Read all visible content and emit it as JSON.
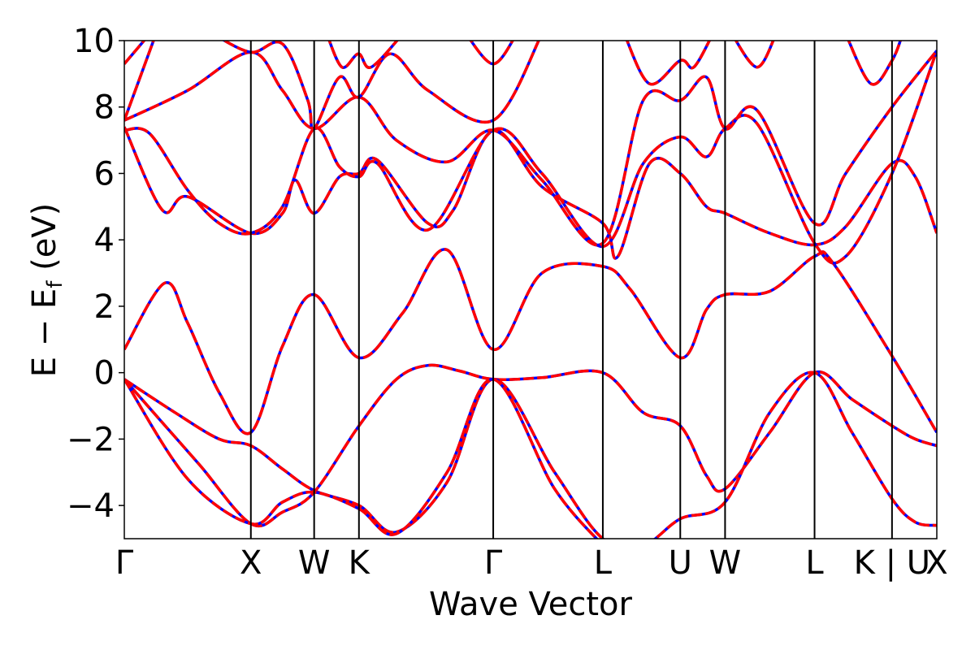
{
  "chart_data": {
    "type": "line",
    "xlabel": "Wave Vector",
    "ylabel_main": "E − E",
    "ylabel_sub": "f",
    "ylabel_unit": " (eV)",
    "ylim": [
      -5,
      10
    ],
    "yticks": [
      -4,
      -2,
      0,
      2,
      4,
      6,
      8,
      10
    ],
    "ytick_labels": [
      "−4",
      "−2",
      "0",
      "2",
      "4",
      "6",
      "8",
      "10"
    ],
    "xlim": [
      0,
      6.5
    ],
    "kpoints": [
      {
        "label": "Γ",
        "x": 0.0
      },
      {
        "label": "X",
        "x": 1.0
      },
      {
        "label": "W",
        "x": 1.5
      },
      {
        "label": "K",
        "x": 1.854
      },
      {
        "label": "Γ",
        "x": 2.915
      },
      {
        "label": "L",
        "x": 3.781
      },
      {
        "label": "U",
        "x": 4.393
      },
      {
        "label": "W",
        "x": 4.747
      },
      {
        "label": "L",
        "x": 5.454
      },
      {
        "label": "K | U",
        "x": 6.066
      },
      {
        "label": "X",
        "x": 6.42
      }
    ],
    "x_range_end": 6.42,
    "grid": false,
    "series_style": [
      {
        "color": "#0000ff",
        "dash": "solid",
        "width": 3.5
      },
      {
        "color": "#ff0000",
        "dash": "dashed",
        "width": 3.5
      }
    ],
    "bands": [
      [
        [
          0,
          -0.2
        ],
        [
          0.3,
          -1.5
        ],
        [
          0.6,
          -2.8
        ],
        [
          1.0,
          -4.55
        ],
        [
          1.25,
          -4.2
        ],
        [
          1.5,
          -3.6
        ],
        [
          1.854,
          -1.6
        ],
        [
          2.15,
          -0.2
        ],
        [
          2.4,
          0.22
        ],
        [
          2.65,
          0.05
        ],
        [
          2.915,
          -0.2
        ],
        [
          3.3,
          -0.15
        ],
        [
          3.781,
          0.0
        ],
        [
          4.1,
          -1.2
        ],
        [
          4.393,
          -1.6
        ],
        [
          4.6,
          -3.1
        ],
        [
          4.747,
          -3.5
        ],
        [
          5.1,
          -1.8
        ],
        [
          5.454,
          0.0
        ],
        [
          5.75,
          -0.8
        ],
        [
          6.066,
          -1.6
        ],
        [
          6.25,
          -2.0
        ],
        [
          6.42,
          -2.2
        ]
      ],
      [
        [
          0,
          -0.2
        ],
        [
          0.4,
          -1.2
        ],
        [
          0.75,
          -2.0
        ],
        [
          1.0,
          -2.2
        ],
        [
          1.25,
          -2.9
        ],
        [
          1.5,
          -3.55
        ],
        [
          1.854,
          -4.0
        ],
        [
          2.15,
          -4.8
        ],
        [
          2.55,
          -3.3
        ],
        [
          2.915,
          -0.2
        ],
        [
          3.4,
          -3.0
        ],
        [
          3.781,
          -5.0
        ],
        [
          4.1,
          -5.2
        ],
        [
          4.393,
          -4.4
        ],
        [
          4.747,
          -3.9
        ],
        [
          5.1,
          -1.2
        ],
        [
          5.454,
          0.0
        ],
        [
          5.75,
          -1.8
        ],
        [
          6.066,
          -3.8
        ],
        [
          6.25,
          -4.5
        ],
        [
          6.42,
          -4.6
        ]
      ],
      [
        [
          0,
          -0.2
        ],
        [
          0.5,
          -3.2
        ],
        [
          1.0,
          -4.55
        ],
        [
          1.25,
          -3.9
        ],
        [
          1.5,
          -3.6
        ],
        [
          1.854,
          -4.1
        ],
        [
          2.15,
          -4.85
        ],
        [
          2.55,
          -3.0
        ],
        [
          2.915,
          -0.2
        ],
        [
          3.4,
          -3.5
        ],
        [
          3.781,
          -5.2
        ]
      ],
      [
        [
          0,
          0.7
        ],
        [
          0.32,
          2.7
        ],
        [
          0.5,
          1.5
        ],
        [
          0.75,
          -0.6
        ],
        [
          1.0,
          -1.8
        ],
        [
          1.25,
          0.8
        ],
        [
          1.5,
          2.35
        ],
        [
          1.854,
          0.45
        ],
        [
          2.2,
          1.8
        ],
        [
          2.55,
          3.7
        ],
        [
          2.915,
          0.7
        ],
        [
          3.3,
          3.0
        ],
        [
          3.781,
          3.2
        ],
        [
          4.0,
          2.5
        ],
        [
          4.393,
          0.45
        ],
        [
          4.6,
          1.9
        ],
        [
          4.747,
          2.35
        ],
        [
          5.1,
          2.45
        ],
        [
          5.454,
          3.5
        ],
        [
          5.6,
          3.3
        ],
        [
          6.066,
          0.5
        ],
        [
          6.42,
          -1.8
        ]
      ],
      [
        [
          0,
          7.4
        ],
        [
          0.3,
          4.9
        ],
        [
          0.5,
          5.3
        ],
        [
          1.0,
          4.2
        ],
        [
          1.25,
          4.8
        ],
        [
          1.35,
          5.8
        ],
        [
          1.5,
          4.8
        ],
        [
          1.7,
          5.9
        ],
        [
          1.854,
          6.0
        ],
        [
          2.0,
          6.4
        ],
        [
          2.4,
          4.5
        ],
        [
          2.6,
          4.9
        ],
        [
          2.915,
          7.3
        ],
        [
          3.3,
          5.6
        ],
        [
          3.781,
          4.5
        ],
        [
          3.9,
          3.5
        ],
        [
          4.15,
          6.3
        ],
        [
          4.393,
          6.0
        ],
        [
          4.6,
          5.0
        ],
        [
          4.747,
          4.8
        ],
        [
          5.1,
          4.2
        ],
        [
          5.454,
          3.85
        ],
        [
          5.7,
          4.4
        ],
        [
          6.066,
          6.3
        ],
        [
          6.25,
          5.9
        ],
        [
          6.42,
          4.2
        ]
      ],
      [
        [
          0,
          7.3
        ],
        [
          0.2,
          7.2
        ],
        [
          0.5,
          5.5
        ],
        [
          0.75,
          4.5
        ],
        [
          1.0,
          4.2
        ],
        [
          1.25,
          5.0
        ],
        [
          1.5,
          7.35
        ],
        [
          1.7,
          6.2
        ],
        [
          1.854,
          5.9
        ],
        [
          2.0,
          6.3
        ],
        [
          2.4,
          4.3
        ],
        [
          2.915,
          7.3
        ],
        [
          3.3,
          6.0
        ],
        [
          3.781,
          3.8
        ],
        [
          4.1,
          6.3
        ],
        [
          4.393,
          7.1
        ],
        [
          4.6,
          6.5
        ],
        [
          4.747,
          7.35
        ],
        [
          5.0,
          7.5
        ],
        [
          5.454,
          3.9
        ],
        [
          5.7,
          3.5
        ],
        [
          6.066,
          6.0
        ],
        [
          6.42,
          9.7
        ]
      ],
      [
        [
          0,
          7.6
        ],
        [
          0.5,
          8.5
        ],
        [
          1.0,
          9.65
        ],
        [
          1.25,
          8.5
        ],
        [
          1.5,
          7.35
        ],
        [
          1.854,
          8.3
        ],
        [
          2.15,
          7.0
        ],
        [
          2.55,
          6.35
        ],
        [
          2.915,
          7.3
        ],
        [
          3.3,
          5.8
        ],
        [
          3.781,
          3.9
        ],
        [
          4.1,
          8.2
        ],
        [
          4.393,
          8.2
        ],
        [
          4.6,
          8.9
        ],
        [
          4.747,
          7.35
        ],
        [
          5.0,
          7.9
        ],
        [
          5.454,
          4.5
        ],
        [
          5.7,
          6.0
        ],
        [
          6.066,
          8.0
        ],
        [
          6.42,
          9.7
        ]
      ],
      [
        [
          0,
          9.3
        ],
        [
          0.2,
          10.2
        ]
      ],
      [
        [
          0,
          7.6
        ],
        [
          0.25,
          10.2
        ]
      ],
      [
        [
          0.7,
          10.2
        ],
        [
          1.0,
          9.65
        ],
        [
          1.25,
          9.9
        ],
        [
          1.45,
          8.2
        ],
        [
          1.5,
          7.35
        ],
        [
          1.7,
          8.9
        ],
        [
          1.854,
          8.3
        ],
        [
          2.1,
          9.6
        ],
        [
          2.4,
          8.5
        ],
        [
          2.915,
          7.6
        ],
        [
          3.3,
          10.2
        ]
      ],
      [
        [
          2.7,
          10.2
        ],
        [
          2.915,
          9.3
        ],
        [
          3.1,
          10.2
        ]
      ],
      [
        [
          1.6,
          10.2
        ],
        [
          1.72,
          9.2
        ],
        [
          1.85,
          9.6
        ],
        [
          1.95,
          9.2
        ],
        [
          2.2,
          10.2
        ]
      ],
      [
        [
          3.95,
          10.2
        ],
        [
          4.15,
          8.7
        ],
        [
          4.393,
          9.4
        ],
        [
          4.5,
          9.2
        ],
        [
          4.65,
          10.2
        ]
      ],
      [
        [
          4.8,
          10.2
        ],
        [
          5.0,
          9.2
        ],
        [
          5.15,
          10.2
        ]
      ],
      [
        [
          5.7,
          10.2
        ],
        [
          5.9,
          8.7
        ],
        [
          6.066,
          9.4
        ],
        [
          6.15,
          10.2
        ]
      ]
    ]
  }
}
